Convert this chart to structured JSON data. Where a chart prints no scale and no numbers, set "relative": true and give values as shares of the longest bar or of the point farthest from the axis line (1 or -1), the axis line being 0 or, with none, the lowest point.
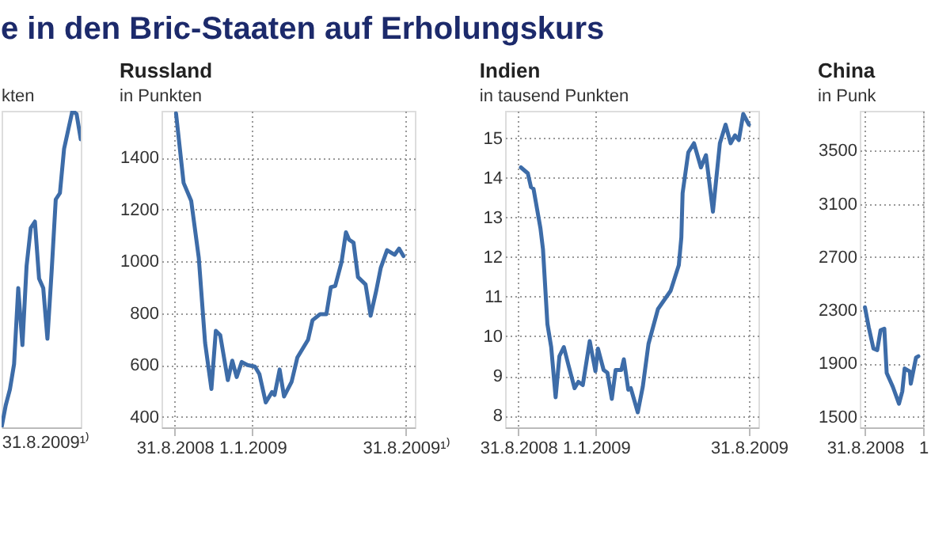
{
  "chart_data": [
    {
      "type": "line",
      "title": "e in den Bric-Staaten auf Erholungskurs",
      "subtitle": "kten",
      "relative": true,
      "categories": [
        null,
        null,
        null,
        null,
        null,
        null,
        null,
        null,
        null,
        null,
        null,
        null,
        null,
        null,
        null,
        null,
        null,
        null,
        null,
        null
      ],
      "series": [
        {
          "color": "#3d6ca8",
          "values": [
            0,
            0.07,
            0.12,
            0.2,
            0.44,
            0.26,
            0.51,
            0.63,
            0.65,
            0.47,
            0.44,
            0.28,
            0.49,
            0.72,
            0.74,
            0.88,
            0.94,
            1.0,
            0.99,
            0.91
          ]
        }
      ],
      "annotations": [
        "31.8.2009¹⁾"
      ]
    },
    {
      "type": "line",
      "title": "Russland",
      "subtitle": "in Punkten",
      "grid": true,
      "xlim": [
        "2008-08-10",
        "2009-09-15"
      ],
      "ylim": [
        360,
        1580
      ],
      "xticks": [
        {
          "value": "2008-08-31",
          "label": "31.8.2008"
        },
        {
          "value": "2009-01-01",
          "label": "1.1.2009"
        },
        {
          "value": "2009-08-31",
          "label": "31.8.2009¹⁾"
        }
      ],
      "yticks": [
        400,
        600,
        800,
        1000,
        1200,
        1400
      ],
      "series": [
        {
          "color": "#3d6ca8",
          "x": [
            "2008-09-02",
            "2008-09-14",
            "2008-09-26",
            "2008-10-08",
            "2008-10-18",
            "2008-10-28",
            "2008-11-04",
            "2008-11-11",
            "2008-11-23",
            "2008-11-30",
            "2008-12-07",
            "2008-12-15",
            "2008-12-24",
            "2009-01-05",
            "2009-01-12",
            "2009-01-22",
            "2009-02-01",
            "2009-02-05",
            "2009-02-13",
            "2009-02-20",
            "2009-03-04",
            "2009-03-13",
            "2009-03-30",
            "2009-04-06",
            "2009-04-18",
            "2009-04-28",
            "2009-05-05",
            "2009-05-12",
            "2009-05-22",
            "2009-05-29",
            "2009-06-03",
            "2009-06-10",
            "2009-06-17",
            "2009-06-29",
            "2009-07-07",
            "2009-07-16",
            "2009-07-23",
            "2009-08-02",
            "2009-08-14",
            "2009-08-21",
            "2009-08-28"
          ],
          "values": [
            1570,
            1302,
            1233,
            1014,
            686,
            508,
            732,
            715,
            542,
            617,
            554,
            612,
            600,
            594,
            565,
            456,
            496,
            485,
            583,
            479,
            536,
            629,
            698,
            773,
            796,
            796,
            900,
            905,
            997,
            1112,
            1083,
            1072,
            939,
            911,
            790,
            888,
            974,
            1043,
            1025,
            1049,
            1020
          ]
        }
      ]
    },
    {
      "type": "line",
      "title": "Indien",
      "subtitle": "in tausend Punkten",
      "grid": true,
      "xlim": [
        "2008-08-10",
        "2009-09-15"
      ],
      "ylim": [
        7.7,
        15.7
      ],
      "xticks": [
        {
          "value": "2008-08-31",
          "label": "31.8.2008"
        },
        {
          "value": "2009-01-01",
          "label": "1.1.2009"
        },
        {
          "value": "2009-08-31",
          "label": "31.8.2009"
        }
      ],
      "yticks": [
        8,
        9,
        10,
        11,
        12,
        13,
        14,
        15
      ],
      "series": [
        {
          "color": "#3d6ca8",
          "x": [
            "2008-09-04",
            "2008-09-15",
            "2008-09-20",
            "2008-09-24",
            "2008-10-05",
            "2008-10-09",
            "2008-10-16",
            "2008-10-22",
            "2008-10-29",
            "2008-11-04",
            "2008-11-11",
            "2008-11-19",
            "2008-11-28",
            "2008-12-04",
            "2008-12-11",
            "2008-12-22",
            "2008-12-31",
            "2009-01-04",
            "2009-01-13",
            "2009-01-19",
            "2009-01-26",
            "2009-02-01",
            "2009-02-10",
            "2009-02-14",
            "2009-02-21",
            "2009-02-25",
            "2009-03-08",
            "2009-03-16",
            "2009-03-25",
            "2009-04-09",
            "2009-04-29",
            "2009-05-12",
            "2009-05-16",
            "2009-05-18",
            "2009-05-27",
            "2009-06-05",
            "2009-06-16",
            "2009-06-24",
            "2009-07-05",
            "2009-07-16",
            "2009-07-25",
            "2009-08-02",
            "2009-08-09",
            "2009-08-15",
            "2009-08-22",
            "2009-08-31"
          ],
          "values": [
            14.27,
            14.12,
            13.77,
            13.73,
            12.73,
            12.2,
            10.31,
            9.73,
            8.46,
            9.5,
            9.73,
            9.23,
            8.69,
            8.85,
            8.77,
            9.88,
            9.12,
            9.69,
            9.15,
            9.08,
            8.42,
            9.15,
            9.15,
            9.42,
            8.65,
            8.69,
            8.08,
            8.73,
            9.81,
            10.69,
            11.15,
            11.8,
            12.5,
            13.62,
            14.65,
            14.88,
            14.27,
            14.58,
            13.15,
            14.88,
            15.35,
            14.88,
            15.08,
            14.96,
            15.62,
            15.35
          ]
        }
      ]
    },
    {
      "type": "line",
      "title": "China",
      "subtitle": "in Punk",
      "grid": true,
      "xlim": [
        "2008-08-20",
        "2009-01-01"
      ],
      "ylim": [
        1420,
        3800
      ],
      "xticks": [
        {
          "value": "2008-08-31",
          "label": "31.8.2008"
        },
        {
          "value": "2009-01-01",
          "label": "1"
        }
      ],
      "yticks": [
        1500,
        1900,
        2300,
        2700,
        3100,
        3500
      ],
      "series": [
        {
          "color": "#3d6ca8",
          "x": [
            "2008-08-31",
            "2008-09-08",
            "2008-09-18",
            "2008-09-26",
            "2008-10-03",
            "2008-10-11",
            "2008-10-16",
            "2008-10-29",
            "2008-11-11",
            "2008-11-18",
            "2008-11-23",
            "2008-12-04",
            "2008-12-06",
            "2008-12-17",
            "2008-12-22"
          ],
          "values": [
            2323,
            2173,
            2012,
            2001,
            2150,
            2162,
            1829,
            1725,
            1598,
            1690,
            1863,
            1840,
            1748,
            1944,
            1955
          ]
        }
      ]
    }
  ]
}
